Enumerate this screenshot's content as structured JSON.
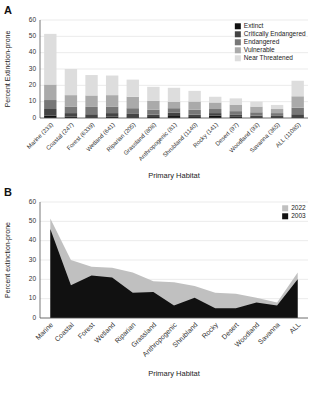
{
  "chart_data": [
    {
      "type": "bar",
      "title": "A",
      "stacked": true,
      "grid": true,
      "legend": "upper right",
      "x_label": "Primary Habitat",
      "y_label": "Percent Extinction-prone",
      "categories": [
        "Marine (233)",
        "Coastal (247)",
        "Forest (6339)",
        "Wetland (641)",
        "Riparian (205)",
        "Grassland (808)",
        "Anthropogenic (81)",
        "Shrubland (1140)",
        "Rocky (141)",
        "Desert (97)",
        "Woodland (93)",
        "Savanna (365)",
        "ALL (11085)"
      ],
      "series": [
        {
          "name": "Extinct",
          "color": "#111111",
          "values": [
            1.5,
            0.8,
            0.5,
            0.8,
            0.5,
            0.6,
            1.2,
            0.6,
            1.5,
            1.0,
            0.5,
            0.5,
            0.5
          ]
        },
        {
          "name": "Critically Endangered",
          "color": "#444444",
          "values": [
            4.0,
            2.2,
            1.8,
            2.2,
            2.0,
            1.5,
            2.0,
            1.5,
            1.5,
            1.2,
            1.0,
            0.8,
            1.8
          ]
        },
        {
          "name": "Endangered",
          "color": "#777777",
          "values": [
            5.5,
            4.0,
            4.5,
            4.0,
            3.5,
            3.0,
            2.8,
            3.0,
            2.5,
            2.0,
            2.0,
            1.7,
            4.0
          ]
        },
        {
          "name": "Vulnerable",
          "color": "#aaaaaa",
          "values": [
            9.5,
            7.0,
            7.0,
            7.0,
            7.0,
            5.5,
            4.0,
            5.0,
            4.0,
            4.0,
            3.5,
            2.5,
            7.0
          ]
        },
        {
          "name": "Near Threatened",
          "color": "#dddddd",
          "values": [
            31.0,
            16.0,
            12.5,
            12.0,
            10.5,
            8.5,
            8.5,
            6.5,
            3.5,
            3.8,
            3.0,
            2.5,
            9.5
          ]
        }
      ],
      "ylim": [
        0,
        60
      ],
      "yticks": [
        0,
        10,
        20,
        30,
        40,
        50,
        60
      ]
    },
    {
      "type": "area",
      "title": "B",
      "grid": true,
      "legend": "upper right",
      "x_label": "Primary Habitat",
      "y_label": "Percent extinction-prone",
      "categories": [
        "Marine",
        "Coastal",
        "Forest",
        "Wetland",
        "Riparian",
        "Grassland",
        "Anthropogenic",
        "Shrubland",
        "Rocky",
        "Desert",
        "Woodland",
        "Savanna",
        "ALL"
      ],
      "series": [
        {
          "name": "2022",
          "color": "#c0c0c0",
          "values": [
            51.5,
            30.0,
            26.5,
            26.0,
            23.5,
            19.0,
            18.5,
            16.5,
            13.0,
            12.5,
            10.5,
            8.0,
            23.5
          ]
        },
        {
          "name": "2003",
          "color": "#111111",
          "values": [
            46.0,
            17.0,
            22.0,
            21.0,
            13.0,
            13.5,
            6.5,
            10.5,
            5.0,
            5.0,
            8.0,
            6.5,
            20.0
          ]
        }
      ],
      "ylim": [
        0,
        60
      ],
      "yticks": [
        0,
        10,
        20,
        30,
        40,
        50,
        60
      ]
    }
  ]
}
